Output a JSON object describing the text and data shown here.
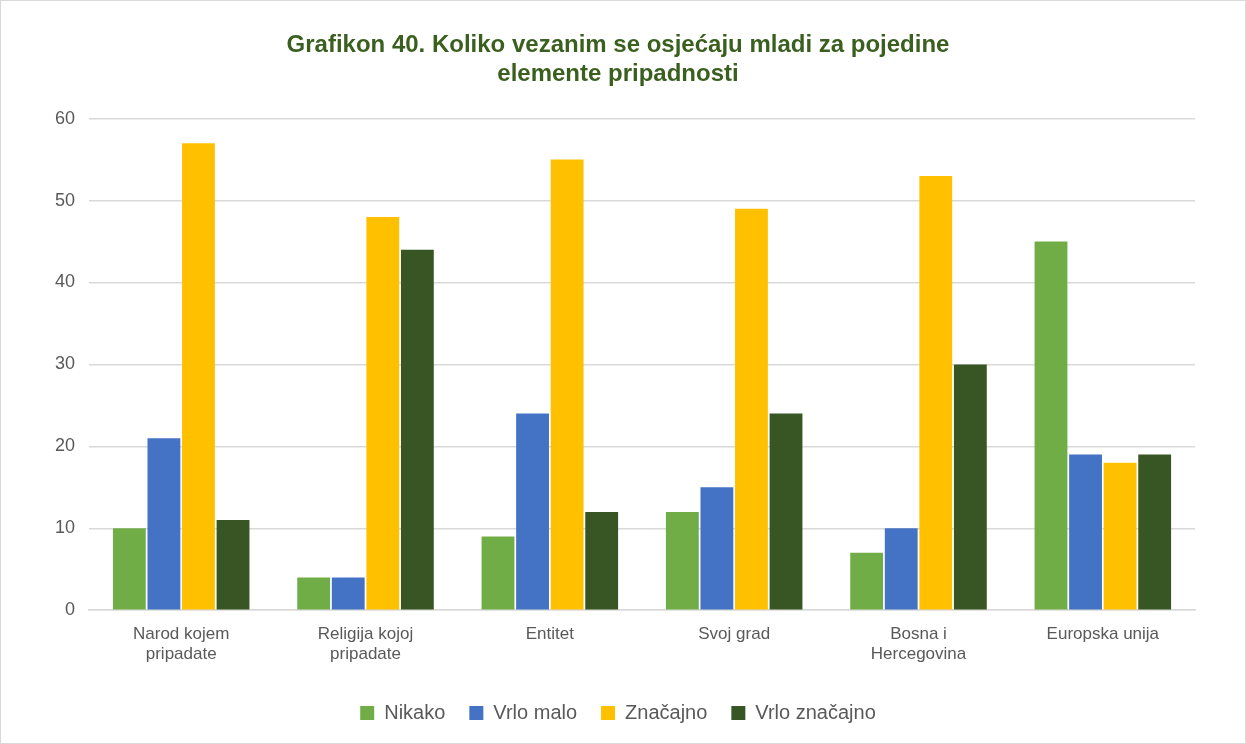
{
  "chart_data": {
    "type": "bar",
    "title": "Grafikon 40. Koliko vezanim se osjećaju mladi za pojedine elemente pripadnosti",
    "categories": [
      [
        "Narod kojem",
        "pripadate"
      ],
      [
        "Religija kojoj",
        "pripadate"
      ],
      "Entitet",
      "Svoj grad",
      [
        "Bosna i",
        "Hercegovina"
      ],
      "Europska unija"
    ],
    "series": [
      {
        "name": "Nikako",
        "color": "#70ad47",
        "values": [
          10,
          4,
          9,
          12,
          7,
          45
        ]
      },
      {
        "name": "Vrlo malo",
        "color": "#4472c4",
        "values": [
          21,
          4,
          24,
          15,
          10,
          19
        ]
      },
      {
        "name": "Značajno",
        "color": "#ffc000",
        "values": [
          57,
          48,
          55,
          49,
          53,
          18
        ]
      },
      {
        "name": "Vrlo značajno",
        "color": "#375623",
        "values": [
          11,
          44,
          12,
          24,
          30,
          19
        ]
      }
    ],
    "ylim": [
      0,
      60
    ],
    "yticks": [
      0,
      10,
      20,
      30,
      40,
      50,
      60
    ],
    "grid": "y",
    "legend": "bottom"
  }
}
